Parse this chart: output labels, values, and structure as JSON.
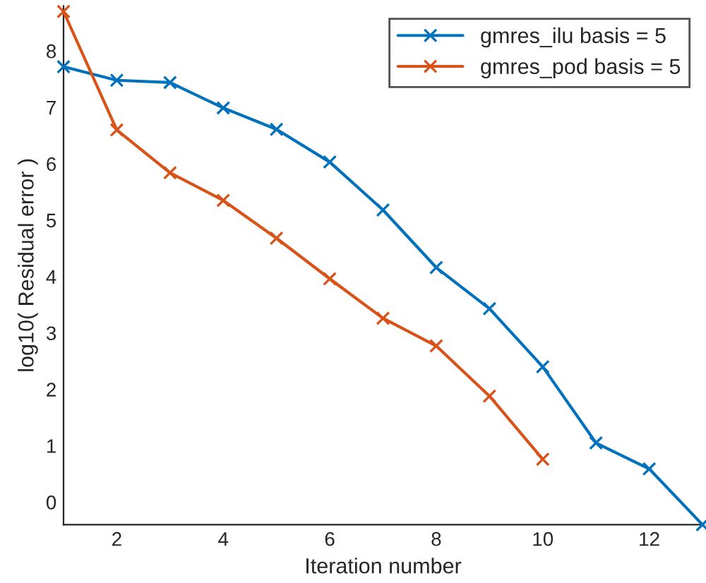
{
  "chart_data": {
    "type": "line",
    "xlabel": "Iteration number",
    "ylabel": "log10( Residual error )",
    "xlim": [
      1,
      13
    ],
    "xticks": [
      2,
      4,
      6,
      8,
      10,
      12
    ],
    "ylim": [
      -0.4,
      8.8
    ],
    "yticks": [
      0,
      1,
      2,
      3,
      4,
      5,
      6,
      7,
      8
    ],
    "marker": "cross",
    "line_style": "solid",
    "grid": false,
    "legend": "top right",
    "series": [
      {
        "name": "gmres_ilu basis = 5",
        "color": "#0072bd",
        "x": [
          1,
          2,
          3,
          4,
          5,
          6,
          7,
          8,
          9,
          10,
          11,
          12,
          13
        ],
        "values": [
          7.72,
          7.48,
          7.44,
          6.99,
          6.61,
          6.03,
          5.18,
          4.16,
          3.43,
          2.4,
          1.05,
          0.59,
          -0.4
        ]
      },
      {
        "name": "gmres_pod basis = 5",
        "color": "#d95319",
        "x": [
          1,
          2,
          3,
          4,
          5,
          6,
          7,
          8,
          9,
          10
        ],
        "values": [
          8.7,
          6.6,
          5.84,
          5.35,
          4.68,
          3.96,
          3.26,
          2.77,
          1.88,
          0.76
        ]
      }
    ]
  }
}
